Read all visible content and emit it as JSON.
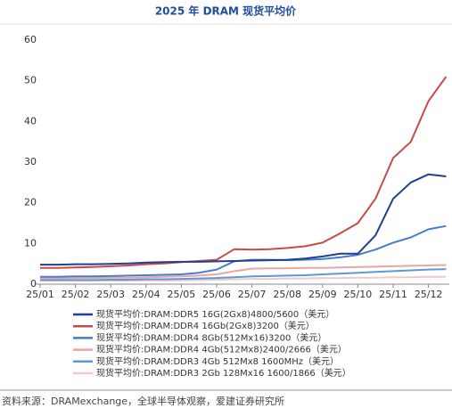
{
  "chart_data": {
    "type": "line",
    "title": "2025 年 DRAM 现货平均价",
    "source": "资料来源：DRAMexchange，全球半导体观察，爱建证券研究所",
    "categories": [
      "25/01",
      null,
      "25/02",
      null,
      "25/03",
      null,
      "25/04",
      null,
      "25/05",
      null,
      "25/06",
      null,
      "25/07",
      null,
      "25/08",
      null,
      "25/09",
      null,
      "25/10",
      null,
      "25/11",
      null,
      "25/12",
      null
    ],
    "ylim": [
      0,
      60
    ],
    "yticks": [
      0,
      10,
      20,
      30,
      40,
      50,
      60
    ],
    "grid": false,
    "series": [
      {
        "name": "现货平均价:DRAM:DDR5 16G(2Gx8)4800/5600（美元）",
        "color": "#1f3f8f",
        "values": [
          4.8,
          4.8,
          4.9,
          4.9,
          5.0,
          5.1,
          5.3,
          5.4,
          5.5,
          5.5,
          5.6,
          5.7,
          5.8,
          5.9,
          6.0,
          6.3,
          6.8,
          7.5,
          7.5,
          12,
          21,
          25,
          27,
          26.5
        ]
      },
      {
        "name": "现货平均价:DRAM:DDR4 16Gb(2Gx8)3200（美元）",
        "color": "#c94a4a",
        "values": [
          4.0,
          4.0,
          4.1,
          4.2,
          4.4,
          4.6,
          4.9,
          5.1,
          5.4,
          5.7,
          6.0,
          8.6,
          8.5,
          8.6,
          8.9,
          9.3,
          10.2,
          12.5,
          15,
          21,
          31,
          35,
          45,
          51
        ]
      },
      {
        "name": "现货平均价:DRAM:DDR4 8Gb(512Mx16)3200（美元）",
        "color": "#4a7cc7",
        "values": [
          1.8,
          1.8,
          1.9,
          1.9,
          2.0,
          2.1,
          2.2,
          2.3,
          2.4,
          2.8,
          3.6,
          5.6,
          6.0,
          6.0,
          5.9,
          6.0,
          6.2,
          6.6,
          7.2,
          8.5,
          10.2,
          11.5,
          13.5,
          14.3
        ]
      },
      {
        "name": "现货平均价:DRAM:DDR4 4Gb(512Mx8)2400/2666（美元）",
        "color": "#e8a6a6",
        "values": [
          1.4,
          1.4,
          1.5,
          1.5,
          1.6,
          1.6,
          1.7,
          1.8,
          1.9,
          2.1,
          2.4,
          3.2,
          3.8,
          3.9,
          3.9,
          4.0,
          4.0,
          4.1,
          4.2,
          4.3,
          4.4,
          4.5,
          4.6,
          4.7
        ]
      },
      {
        "name": "现货平均价:DRAM:DDR3 4Gb 512Mx8 1600MHz（美元）",
        "color": "#5b9bd5",
        "values": [
          1.0,
          1.0,
          1.0,
          1.0,
          1.1,
          1.1,
          1.2,
          1.2,
          1.3,
          1.4,
          1.5,
          1.7,
          1.9,
          2.0,
          2.1,
          2.2,
          2.4,
          2.6,
          2.8,
          3.0,
          3.2,
          3.4,
          3.6,
          3.7
        ]
      },
      {
        "name": "现货平均价:DRAM:DDR3 2Gb 128Mx16 1600/1866（美元）",
        "color": "#f2c9c9",
        "values": [
          0.8,
          0.8,
          0.8,
          0.8,
          0.8,
          0.8,
          0.9,
          0.9,
          0.9,
          1.0,
          1.1,
          1.2,
          1.3,
          1.3,
          1.4,
          1.4,
          1.5,
          1.5,
          1.6,
          1.6,
          1.7,
          1.7,
          1.8,
          1.8
        ]
      }
    ]
  }
}
